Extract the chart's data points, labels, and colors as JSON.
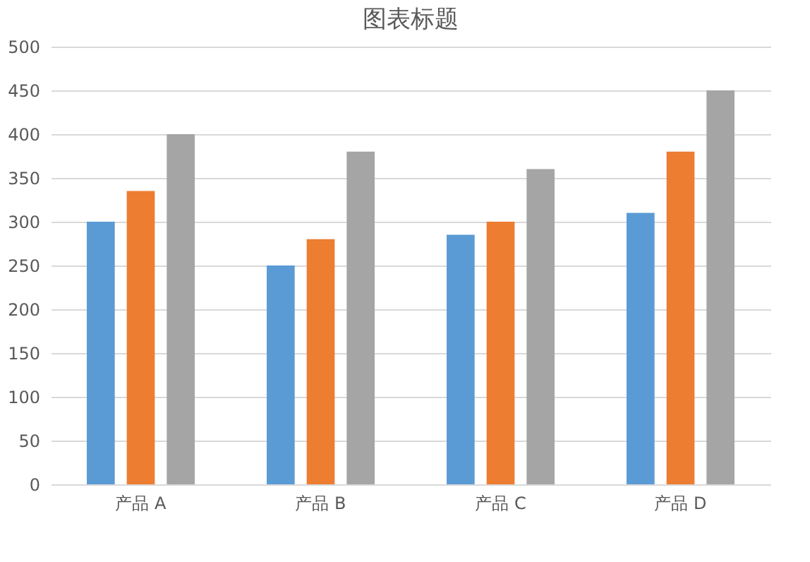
{
  "chart_data": {
    "type": "bar",
    "title": "图表标题",
    "categories": [
      "产品 A",
      "产品 B",
      "产品 C",
      "产品 D"
    ],
    "series": [
      {
        "color": "#5b9bd5",
        "values": [
          300,
          250,
          285,
          310
        ]
      },
      {
        "color": "#ed7d31",
        "values": [
          335,
          280,
          300,
          380
        ]
      },
      {
        "color": "#a5a5a5",
        "values": [
          400,
          380,
          360,
          450
        ]
      }
    ],
    "ylim": [
      0,
      500
    ],
    "yticks": [
      0,
      50,
      100,
      150,
      200,
      250,
      300,
      350,
      400,
      450,
      500
    ],
    "grid": "y"
  }
}
